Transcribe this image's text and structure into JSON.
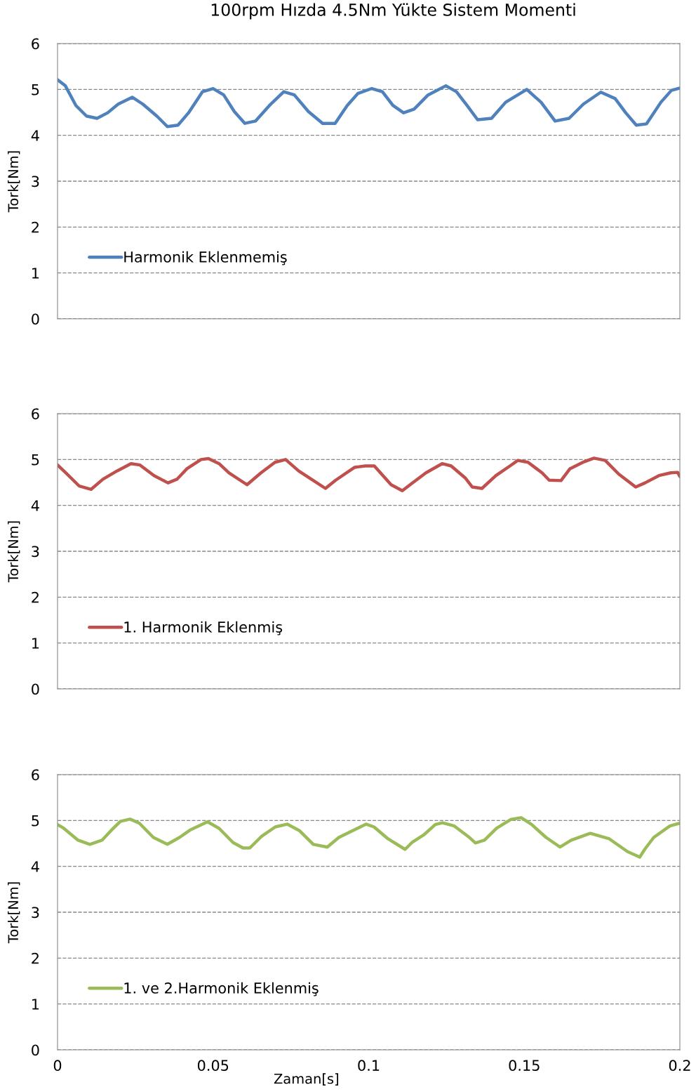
{
  "chart_data": [
    {
      "type": "line",
      "title": "100rpm Hızda 4.5Nm Yükte Sistem Momenti",
      "ylabel": "Tork[Nm]",
      "xlim": [
        0,
        0.2
      ],
      "ylim": [
        0,
        6
      ],
      "yticks": [
        0,
        1,
        2,
        3,
        4,
        5,
        6
      ],
      "tick_labels": "y",
      "grid": "y",
      "legend": "left",
      "line_style": "solid",
      "series": [
        {
          "name": "Harmonik Eklenmemiş",
          "color": "#4f81bd",
          "x": [
            0,
            0.0025,
            0.0059,
            0.0093,
            0.0127,
            0.0161,
            0.0195,
            0.024,
            0.0274,
            0.0319,
            0.0353,
            0.0387,
            0.0421,
            0.0466,
            0.05,
            0.0534,
            0.0568,
            0.0602,
            0.0636,
            0.0681,
            0.0727,
            0.0761,
            0.0806,
            0.0852,
            0.0892,
            0.0931,
            0.0965,
            0.101,
            0.1044,
            0.1078,
            0.1112,
            0.1146,
            0.1191,
            0.1248,
            0.1282,
            0.1316,
            0.135,
            0.1395,
            0.144,
            0.1508,
            0.1554,
            0.1599,
            0.1644,
            0.169,
            0.1746,
            0.1792,
            0.1826,
            0.186,
            0.1893,
            0.1939,
            0.1973,
            0.2
          ],
          "values": [
            5.21,
            5.08,
            4.65,
            4.42,
            4.37,
            4.49,
            4.68,
            4.83,
            4.68,
            4.42,
            4.19,
            4.22,
            4.49,
            4.95,
            5.02,
            4.88,
            4.52,
            4.26,
            4.31,
            4.65,
            4.95,
            4.88,
            4.52,
            4.26,
            4.26,
            4.65,
            4.91,
            5.02,
            4.95,
            4.65,
            4.49,
            4.57,
            4.88,
            5.08,
            4.95,
            4.65,
            4.34,
            4.37,
            4.72,
            5.0,
            4.72,
            4.31,
            4.37,
            4.68,
            4.94,
            4.8,
            4.49,
            4.22,
            4.25,
            4.72,
            4.98,
            5.03
          ]
        }
      ]
    },
    {
      "type": "line",
      "ylabel": "Tork[Nm]",
      "xlim": [
        0,
        0.2
      ],
      "ylim": [
        0,
        6
      ],
      "yticks": [
        0,
        1,
        2,
        3,
        4,
        5,
        6
      ],
      "tick_labels": "y",
      "grid": "y",
      "legend": "left",
      "line_style": "solid",
      "series": [
        {
          "name": "1. Harmonik Eklenmiş",
          "color": "#c0504d",
          "x": [
            0,
            0.0025,
            0.007,
            0.0108,
            0.0146,
            0.0191,
            0.0236,
            0.0265,
            0.031,
            0.0355,
            0.0384,
            0.0416,
            0.0461,
            0.0485,
            0.0519,
            0.0551,
            0.0609,
            0.0654,
            0.0699,
            0.0733,
            0.0775,
            0.082,
            0.0861,
            0.0894,
            0.0955,
            0.0989,
            0.1018,
            0.1072,
            0.1108,
            0.1139,
            0.1184,
            0.1236,
            0.1265,
            0.131,
            0.1333,
            0.1364,
            0.1409,
            0.1454,
            0.1479,
            0.1512,
            0.1557,
            0.158,
            0.1618,
            0.1647,
            0.1692,
            0.1724,
            0.176,
            0.1804,
            0.1858,
            0.1888,
            0.1933,
            0.1971,
            0.1993,
            0.2
          ],
          "values": [
            4.88,
            4.72,
            4.42,
            4.35,
            4.57,
            4.75,
            4.91,
            4.88,
            4.65,
            4.49,
            4.57,
            4.8,
            5.0,
            5.02,
            4.91,
            4.71,
            4.45,
            4.71,
            4.94,
            5.0,
            4.75,
            4.55,
            4.37,
            4.55,
            4.83,
            4.86,
            4.86,
            4.45,
            4.32,
            4.48,
            4.71,
            4.91,
            4.86,
            4.6,
            4.4,
            4.37,
            4.65,
            4.86,
            4.98,
            4.94,
            4.71,
            4.55,
            4.54,
            4.8,
            4.95,
            5.03,
            4.98,
            4.68,
            4.4,
            4.49,
            4.65,
            4.71,
            4.72,
            4.63
          ]
        }
      ]
    },
    {
      "type": "line",
      "xlabel": "Zaman[s]",
      "ylabel": "Tork[Nm]",
      "xlim": [
        0,
        0.2
      ],
      "xticks": [
        0,
        0.05,
        0.1,
        0.15,
        0.2
      ],
      "ylim": [
        0,
        6
      ],
      "yticks": [
        0,
        1,
        2,
        3,
        4,
        5,
        6
      ],
      "grid": "y",
      "legend": "left",
      "line_style": "solid",
      "series": [
        {
          "name": "1. ve 2.Harmonik Eklenmiş",
          "color": "#9bbb59",
          "x": [
            0,
            0.002,
            0.0066,
            0.0104,
            0.0143,
            0.0172,
            0.0202,
            0.0233,
            0.0263,
            0.0308,
            0.0353,
            0.0392,
            0.0428,
            0.0482,
            0.0519,
            0.0564,
            0.0596,
            0.0618,
            0.0655,
            0.07,
            0.0738,
            0.0777,
            0.0822,
            0.0867,
            0.0904,
            0.0949,
            0.0992,
            0.1017,
            0.1062,
            0.1117,
            0.1139,
            0.1176,
            0.1214,
            0.1237,
            0.1275,
            0.132,
            0.1343,
            0.1372,
            0.1411,
            0.1456,
            0.149,
            0.1524,
            0.157,
            0.1615,
            0.1651,
            0.1712,
            0.1773,
            0.1832,
            0.1871,
            0.1887,
            0.1916,
            0.1968,
            0.2
          ],
          "values": [
            4.91,
            4.83,
            4.57,
            4.48,
            4.57,
            4.78,
            4.98,
            5.03,
            4.94,
            4.63,
            4.48,
            4.63,
            4.8,
            4.97,
            4.83,
            4.52,
            4.4,
            4.4,
            4.65,
            4.86,
            4.92,
            4.78,
            4.48,
            4.42,
            4.63,
            4.78,
            4.92,
            4.86,
            4.6,
            4.37,
            4.52,
            4.68,
            4.91,
            4.95,
            4.88,
            4.65,
            4.51,
            4.57,
            4.83,
            5.02,
            5.06,
            4.91,
            4.63,
            4.42,
            4.57,
            4.72,
            4.6,
            4.32,
            4.2,
            4.37,
            4.63,
            4.88,
            4.94
          ]
        }
      ]
    }
  ]
}
